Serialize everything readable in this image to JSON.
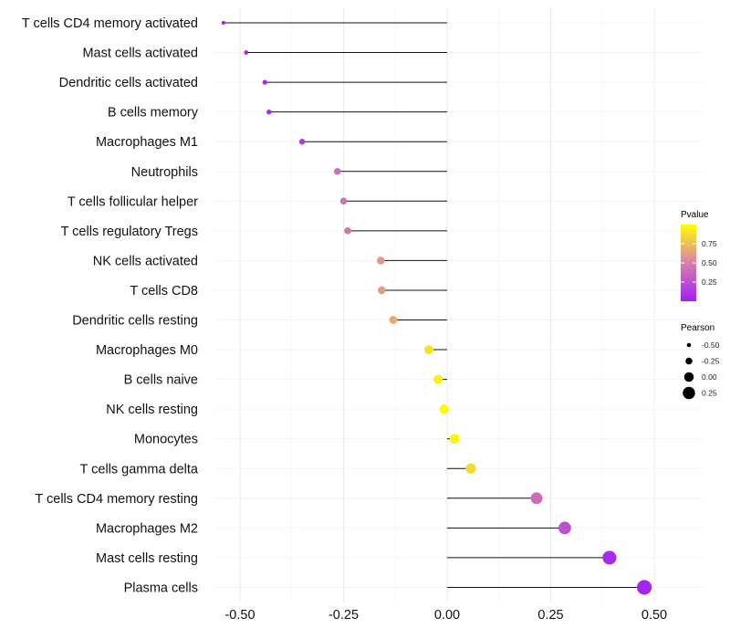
{
  "chart_data": {
    "type": "lollipop",
    "title": "",
    "xlabel": "",
    "ylabel": "",
    "xlim": [
      -0.56,
      0.63
    ],
    "x_ticks": [
      "-0.50",
      "-0.25",
      "0.00",
      "0.25",
      "0.50"
    ],
    "x_tick_values": [
      -0.5,
      -0.25,
      0,
      0.25,
      0.5
    ],
    "grid": true,
    "categories": [
      "T cells CD4 memory activated",
      "Mast cells activated",
      "Dendritic cells activated",
      "B cells memory",
      "Macrophages M1",
      "Neutrophils",
      "T cells follicular helper",
      "T cells regulatory  Tregs",
      "NK cells activated",
      "T cells CD8",
      "Dendritic cells resting",
      "Macrophages M0",
      "B cells naive",
      "NK cells resting",
      "Monocytes",
      "T cells gamma delta",
      "T cells CD4 memory resting",
      "Macrophages M2",
      "Mast cells resting",
      "Plasma cells"
    ],
    "pearson": [
      -0.54,
      -0.485,
      -0.44,
      -0.43,
      -0.35,
      -0.265,
      -0.25,
      -0.24,
      -0.16,
      -0.158,
      -0.13,
      -0.044,
      -0.022,
      -0.007,
      0.018,
      0.057,
      0.216,
      0.284,
      0.392,
      0.476
    ],
    "pvalue": [
      0.02,
      0.03,
      0.05,
      0.06,
      0.15,
      0.38,
      0.42,
      0.45,
      0.6,
      0.62,
      0.68,
      0.88,
      0.95,
      0.98,
      0.95,
      0.85,
      0.4,
      0.25,
      0.05,
      0.03
    ],
    "legend_color": {
      "title": "Pvalue",
      "ticks": [
        "0.25",
        "0.50",
        "0.75"
      ],
      "tick_values": [
        0.25,
        0.5,
        0.75
      ],
      "range": [
        0,
        1
      ],
      "colors": [
        "#a020f0",
        "#d880ac",
        "#ffff00"
      ],
      "position": "right"
    },
    "legend_size": {
      "title": "Pearson",
      "labels": [
        "-0.50",
        "-0.25",
        "0.00",
        "0.25"
      ],
      "values": [
        -0.5,
        -0.25,
        0,
        0.25
      ],
      "position": "right"
    }
  }
}
